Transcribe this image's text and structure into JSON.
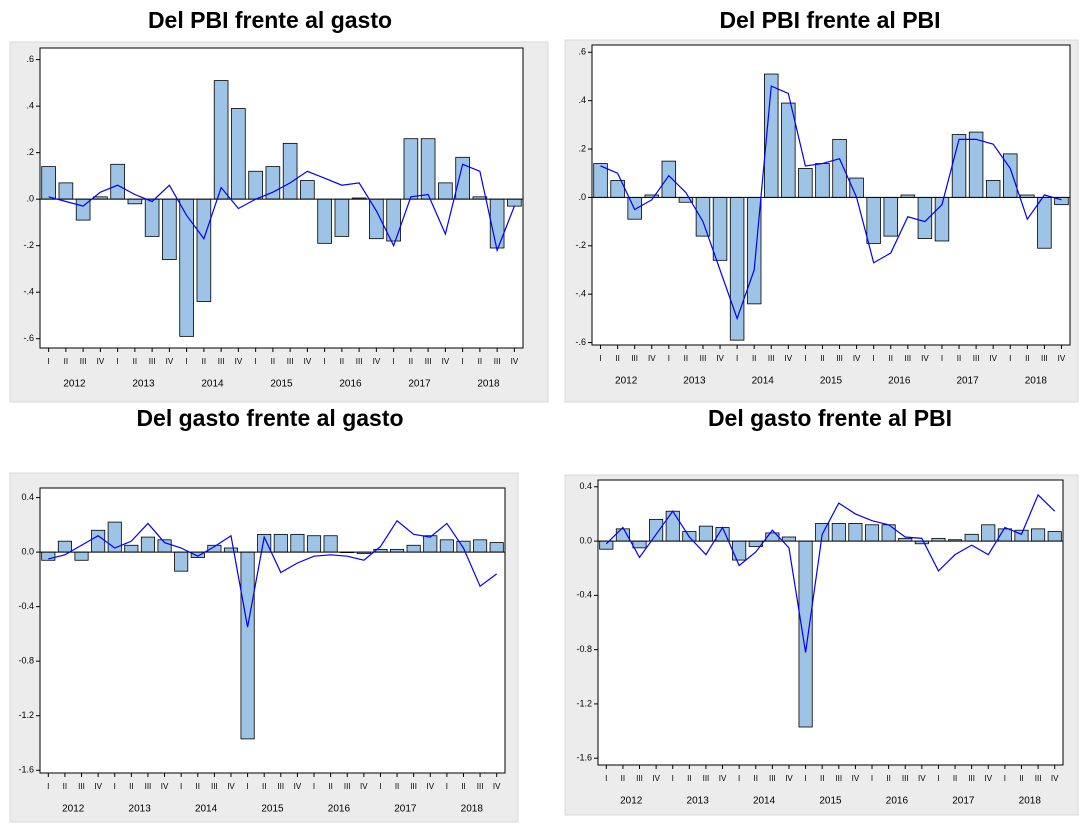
{
  "chart_data": [
    {
      "type": "bar",
      "title": "Del PBI frente al gasto",
      "categories": [
        "I",
        "II",
        "III",
        "IV",
        "I",
        "II",
        "III",
        "IV",
        "I",
        "II",
        "III",
        "IV",
        "I",
        "II",
        "III",
        "IV",
        "I",
        "II",
        "III",
        "IV",
        "I",
        "II",
        "III",
        "IV",
        "I",
        "II",
        "III",
        "IV"
      ],
      "years": [
        "2012",
        "2013",
        "2014",
        "2015",
        "2016",
        "2017",
        "2018"
      ],
      "ylim": [
        -0.64,
        0.65
      ],
      "yticks": [
        {
          "value": 0.6,
          "label": ".6"
        },
        {
          "value": 0.4,
          "label": ".4"
        },
        {
          "value": 0.2,
          "label": ".2"
        },
        {
          "value": 0,
          "label": ".0"
        },
        {
          "value": -0.2,
          "label": "-.2"
        },
        {
          "value": -0.4,
          "label": "-.4"
        },
        {
          "value": -0.6,
          "label": "-.6"
        }
      ],
      "series": [
        {
          "type": "bar",
          "color": "#9dc3e6",
          "values": [
            0.14,
            0.07,
            -0.09,
            0.01,
            0.15,
            -0.02,
            -0.16,
            -0.26,
            -0.59,
            -0.44,
            0.51,
            0.39,
            0.12,
            0.14,
            0.24,
            0.08,
            -0.19,
            -0.16,
            0.005,
            -0.17,
            -0.18,
            0.26,
            0.26,
            0.07,
            0.18,
            0.01,
            -0.21,
            -0.03
          ]
        },
        {
          "type": "line",
          "color": "#0000ff",
          "values": [
            0.01,
            -0.01,
            -0.03,
            0.03,
            0.06,
            0.02,
            -0.01,
            0.06,
            -0.07,
            -0.17,
            0.05,
            -0.04,
            0.0,
            0.03,
            0.07,
            0.12,
            0.09,
            0.06,
            0.07,
            -0.05,
            -0.2,
            0.01,
            0.02,
            -0.15,
            0.15,
            0.12,
            -0.22,
            -0.03
          ]
        }
      ]
    },
    {
      "type": "bar",
      "title": "Del PBI frente al PBI",
      "categories": [
        "I",
        "II",
        "III",
        "IV",
        "I",
        "II",
        "III",
        "IV",
        "I",
        "II",
        "III",
        "IV",
        "I",
        "II",
        "III",
        "IV",
        "I",
        "II",
        "III",
        "IV",
        "I",
        "II",
        "III",
        "IV",
        "I",
        "II",
        "III",
        "IV"
      ],
      "years": [
        "2012",
        "2013",
        "2014",
        "2015",
        "2016",
        "2017",
        "2018"
      ],
      "ylim": [
        -0.61,
        0.63
      ],
      "yticks": [
        {
          "value": 0.6,
          "label": ".6"
        },
        {
          "value": 0.4,
          "label": ".4"
        },
        {
          "value": 0.2,
          "label": ".2"
        },
        {
          "value": 0,
          "label": ".0"
        },
        {
          "value": -0.2,
          "label": "-.2"
        },
        {
          "value": -0.4,
          "label": "-.4"
        },
        {
          "value": -0.6,
          "label": "-.6"
        }
      ],
      "series": [
        {
          "type": "bar",
          "color": "#9dc3e6",
          "values": [
            0.14,
            0.07,
            -0.09,
            0.01,
            0.15,
            -0.02,
            -0.16,
            -0.26,
            -0.59,
            -0.44,
            0.51,
            0.39,
            0.12,
            0.14,
            0.24,
            0.08,
            -0.19,
            -0.16,
            0.01,
            -0.17,
            -0.18,
            0.26,
            0.27,
            0.07,
            0.18,
            0.01,
            -0.21,
            -0.03
          ]
        },
        {
          "type": "line",
          "color": "#0000ff",
          "values": [
            0.13,
            0.1,
            -0.05,
            -0.01,
            0.09,
            0.02,
            -0.1,
            -0.3,
            -0.5,
            -0.3,
            0.46,
            0.43,
            0.13,
            0.14,
            0.16,
            0.0,
            -0.27,
            -0.23,
            -0.08,
            -0.1,
            -0.03,
            0.24,
            0.24,
            0.22,
            0.12,
            -0.09,
            0.01,
            -0.01
          ]
        }
      ]
    },
    {
      "type": "bar",
      "title": "Del gasto frente al gasto",
      "categories": [
        "I",
        "II",
        "III",
        "IV",
        "I",
        "II",
        "III",
        "IV",
        "I",
        "II",
        "III",
        "IV",
        "I",
        "II",
        "III",
        "IV",
        "I",
        "II",
        "III",
        "IV",
        "I",
        "II",
        "III",
        "IV",
        "I",
        "II",
        "III",
        "IV"
      ],
      "years": [
        "2012",
        "2013",
        "2014",
        "2015",
        "2016",
        "2017",
        "2018"
      ],
      "ylim": [
        -1.62,
        0.47
      ],
      "yticks": [
        0.4,
        {
          "value": 0,
          "label": "0.0"
        },
        -0.4,
        -0.8,
        -1.2,
        -1.6
      ],
      "series": [
        {
          "type": "bar",
          "color": "#9dc3e6",
          "values": [
            -0.06,
            0.08,
            -0.06,
            0.16,
            0.22,
            0.05,
            0.11,
            0.09,
            -0.14,
            -0.04,
            0.05,
            0.03,
            -1.37,
            0.13,
            0.13,
            0.13,
            0.12,
            0.12,
            0.0,
            -0.01,
            0.02,
            0.02,
            0.05,
            0.12,
            0.09,
            0.08,
            0.09,
            0.07
          ]
        },
        {
          "type": "line",
          "color": "#0000ff",
          "values": [
            -0.05,
            -0.02,
            0.05,
            0.12,
            0.03,
            0.08,
            0.21,
            0.07,
            0.03,
            -0.03,
            0.04,
            0.12,
            -0.55,
            0.11,
            -0.15,
            -0.08,
            -0.03,
            -0.02,
            -0.03,
            -0.06,
            0.04,
            0.23,
            0.13,
            0.11,
            0.21,
            0.03,
            -0.25,
            -0.16
          ]
        }
      ]
    },
    {
      "type": "bar",
      "title": "Del gasto frente al PBI",
      "categories": [
        "I",
        "II",
        "III",
        "IV",
        "I",
        "II",
        "III",
        "IV",
        "I",
        "II",
        "III",
        "IV",
        "I",
        "II",
        "III",
        "IV",
        "I",
        "II",
        "III",
        "IV",
        "I",
        "II",
        "III",
        "IV",
        "I",
        "II",
        "III",
        "IV"
      ],
      "years": [
        "2012",
        "2013",
        "2014",
        "2015",
        "2016",
        "2017",
        "2018"
      ],
      "ylim": [
        -1.65,
        0.45
      ],
      "yticks": [
        0.4,
        {
          "value": 0,
          "label": "0.0"
        },
        -0.4,
        -0.8,
        -1.2,
        -1.6
      ],
      "series": [
        {
          "type": "bar",
          "color": "#9dc3e6",
          "values": [
            -0.06,
            0.09,
            -0.05,
            0.16,
            0.22,
            0.07,
            0.11,
            0.1,
            -0.14,
            -0.04,
            0.06,
            0.03,
            -1.37,
            0.13,
            0.13,
            0.13,
            0.12,
            0.12,
            0.02,
            -0.02,
            0.02,
            0.01,
            0.05,
            0.12,
            0.09,
            0.08,
            0.09,
            0.07
          ]
        },
        {
          "type": "line",
          "color": "#0000ff",
          "values": [
            -0.02,
            0.1,
            -0.12,
            0.05,
            0.22,
            0.03,
            -0.1,
            0.1,
            -0.18,
            -0.08,
            0.08,
            -0.05,
            -0.82,
            0.05,
            0.28,
            0.2,
            0.15,
            0.12,
            0.03,
            0.02,
            -0.22,
            -0.1,
            -0.03,
            -0.1,
            0.1,
            0.05,
            0.34,
            0.22
          ]
        }
      ]
    }
  ]
}
